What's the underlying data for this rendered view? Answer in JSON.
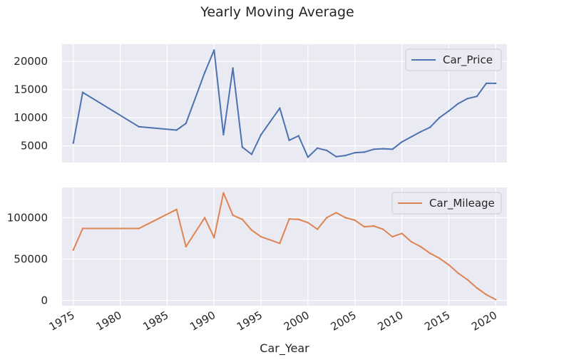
{
  "figure": {
    "title": "Yearly Moving Average",
    "xlabel": "Car_Year"
  },
  "colors": {
    "price_line": "#4c72b0",
    "mileage_line": "#dd8452",
    "plot_background": "#eaeaf2",
    "grid": "#ffffff",
    "text": "#262626"
  },
  "chart_data": [
    {
      "type": "line",
      "series": [
        {
          "name": "Car_Price",
          "x": [
            1975,
            1976,
            1982,
            1986,
            1987,
            1989,
            1990,
            1991,
            1992,
            1993,
            1994,
            1995,
            1997,
            1998,
            1999,
            2000,
            2001,
            2002,
            2003,
            2004,
            2005,
            2006,
            2007,
            2008,
            2009,
            2010,
            2011,
            2012,
            2013,
            2014,
            2015,
            2016,
            2017,
            2018,
            2019,
            2020
          ],
          "values": [
            5500,
            14500,
            8400,
            7800,
            9000,
            18000,
            22000,
            7000,
            18800,
            4800,
            3500,
            7000,
            11700,
            6000,
            6800,
            3000,
            4600,
            4200,
            3100,
            3300,
            3800,
            3900,
            4400,
            4500,
            4400,
            5700,
            6600,
            7500,
            8300,
            10000,
            11200,
            12500,
            13400,
            13800,
            16100,
            16100
          ]
        }
      ],
      "xlim": [
        1973.8,
        2021.2
      ],
      "ylim": [
        2050,
        23050
      ],
      "yticks": [
        5000,
        10000,
        15000,
        20000
      ],
      "legend": "top-right",
      "grid": true
    },
    {
      "type": "line",
      "series": [
        {
          "name": "Car_Mileage",
          "x": [
            1975,
            1976,
            1982,
            1986,
            1987,
            1989,
            1990,
            1991,
            1992,
            1993,
            1994,
            1995,
            1997,
            1998,
            1999,
            2000,
            2001,
            2002,
            2003,
            2004,
            2005,
            2006,
            2007,
            2008,
            2009,
            2010,
            2011,
            2012,
            2013,
            2014,
            2015,
            2016,
            2017,
            2018,
            2019,
            2020
          ],
          "values": [
            61000,
            87000,
            87000,
            110000,
            65000,
            100000,
            76000,
            130000,
            103000,
            98000,
            85000,
            77000,
            69000,
            98500,
            98000,
            94000,
            86000,
            100000,
            106000,
            100000,
            97000,
            89000,
            90000,
            86000,
            77000,
            81000,
            71000,
            65000,
            57000,
            51000,
            43000,
            33000,
            25000,
            15000,
            7000,
            1000
          ]
        }
      ],
      "xlim": [
        1973.8,
        2021.2
      ],
      "ylim": [
        -6500,
        136500
      ],
      "yticks": [
        0,
        50000,
        100000
      ],
      "xticks": [
        1975,
        1980,
        1985,
        1990,
        1995,
        2000,
        2005,
        2010,
        2015,
        2020
      ],
      "legend": "top-right",
      "grid": true
    }
  ]
}
